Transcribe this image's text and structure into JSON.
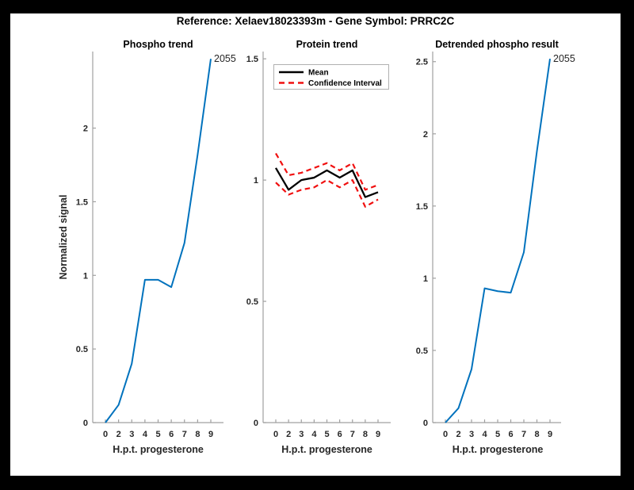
{
  "figure": {
    "title": "Reference:  Xelaev18023393m - Gene Symbol:  PRRC2C",
    "background_color": "#ffffff",
    "frame_color": "#000000"
  },
  "colors": {
    "trend_blue": "#0072BD",
    "ci_red": "#F01010",
    "mean_black": "#000000",
    "axis_line": "#A0A0A0",
    "tick_text": "#262626"
  },
  "legend": {
    "position": "top-right-inside",
    "items": [
      "Mean",
      "Confidence Interval"
    ]
  },
  "chart_data": [
    {
      "type": "line",
      "title": "Phospho trend",
      "xlabel": "H.p.t. progesterone",
      "ylabel": "Normalized signal",
      "x_tick_labels": [
        "0",
        "2",
        "3",
        "4",
        "5",
        "6",
        "7",
        "8",
        "9"
      ],
      "x": [
        0,
        2,
        3,
        4,
        5,
        6,
        7,
        8,
        9
      ],
      "values": [
        0,
        0.12,
        0.4,
        0.97,
        0.97,
        0.92,
        1.22,
        1.82,
        2.47
      ],
      "ylim": [
        0,
        2.52
      ],
      "yticks": [
        0,
        0.5,
        1,
        1.5,
        2
      ],
      "line_color": "#0072BD",
      "annotation": "2055",
      "grid": false,
      "legend": null
    },
    {
      "type": "line",
      "title": "Protein trend",
      "xlabel": "H.p.t. progesterone",
      "ylabel": "",
      "x_tick_labels": [
        "0",
        "2",
        "3",
        "4",
        "5",
        "6",
        "7",
        "8",
        "9"
      ],
      "x": [
        0,
        2,
        3,
        4,
        5,
        6,
        7,
        8,
        9
      ],
      "series": [
        {
          "name": "Mean",
          "style": "solid",
          "color": "#000000",
          "values": [
            1.05,
            0.96,
            1.0,
            1.01,
            1.04,
            1.01,
            1.04,
            0.93,
            0.95
          ]
        },
        {
          "name": "Confidence Interval",
          "style": "dashed",
          "color": "#F01010",
          "upper": [
            1.11,
            1.02,
            1.03,
            1.05,
            1.07,
            1.04,
            1.07,
            0.96,
            0.98
          ],
          "lower": [
            0.99,
            0.94,
            0.96,
            0.97,
            1.0,
            0.97,
            1.0,
            0.89,
            0.92
          ]
        }
      ],
      "ylim": [
        0,
        1.53
      ],
      "yticks": [
        0,
        0.5,
        1,
        1.5
      ],
      "annotation": null,
      "grid": false,
      "legend": "top-right"
    },
    {
      "type": "line",
      "title": "Detrended phospho result",
      "xlabel": "H.p.t. progesterone",
      "ylabel": "",
      "x_tick_labels": [
        "0",
        "2",
        "3",
        "4",
        "5",
        "6",
        "7",
        "8",
        "9"
      ],
      "x": [
        0,
        2,
        3,
        4,
        5,
        6,
        7,
        8,
        9
      ],
      "values": [
        0,
        0.1,
        0.37,
        0.93,
        0.91,
        0.9,
        1.18,
        1.88,
        2.52
      ],
      "ylim": [
        0,
        2.57
      ],
      "yticks": [
        0,
        0.5,
        1,
        1.5,
        2,
        2.5
      ],
      "line_color": "#0072BD",
      "annotation": "2055",
      "grid": false,
      "legend": null
    }
  ]
}
